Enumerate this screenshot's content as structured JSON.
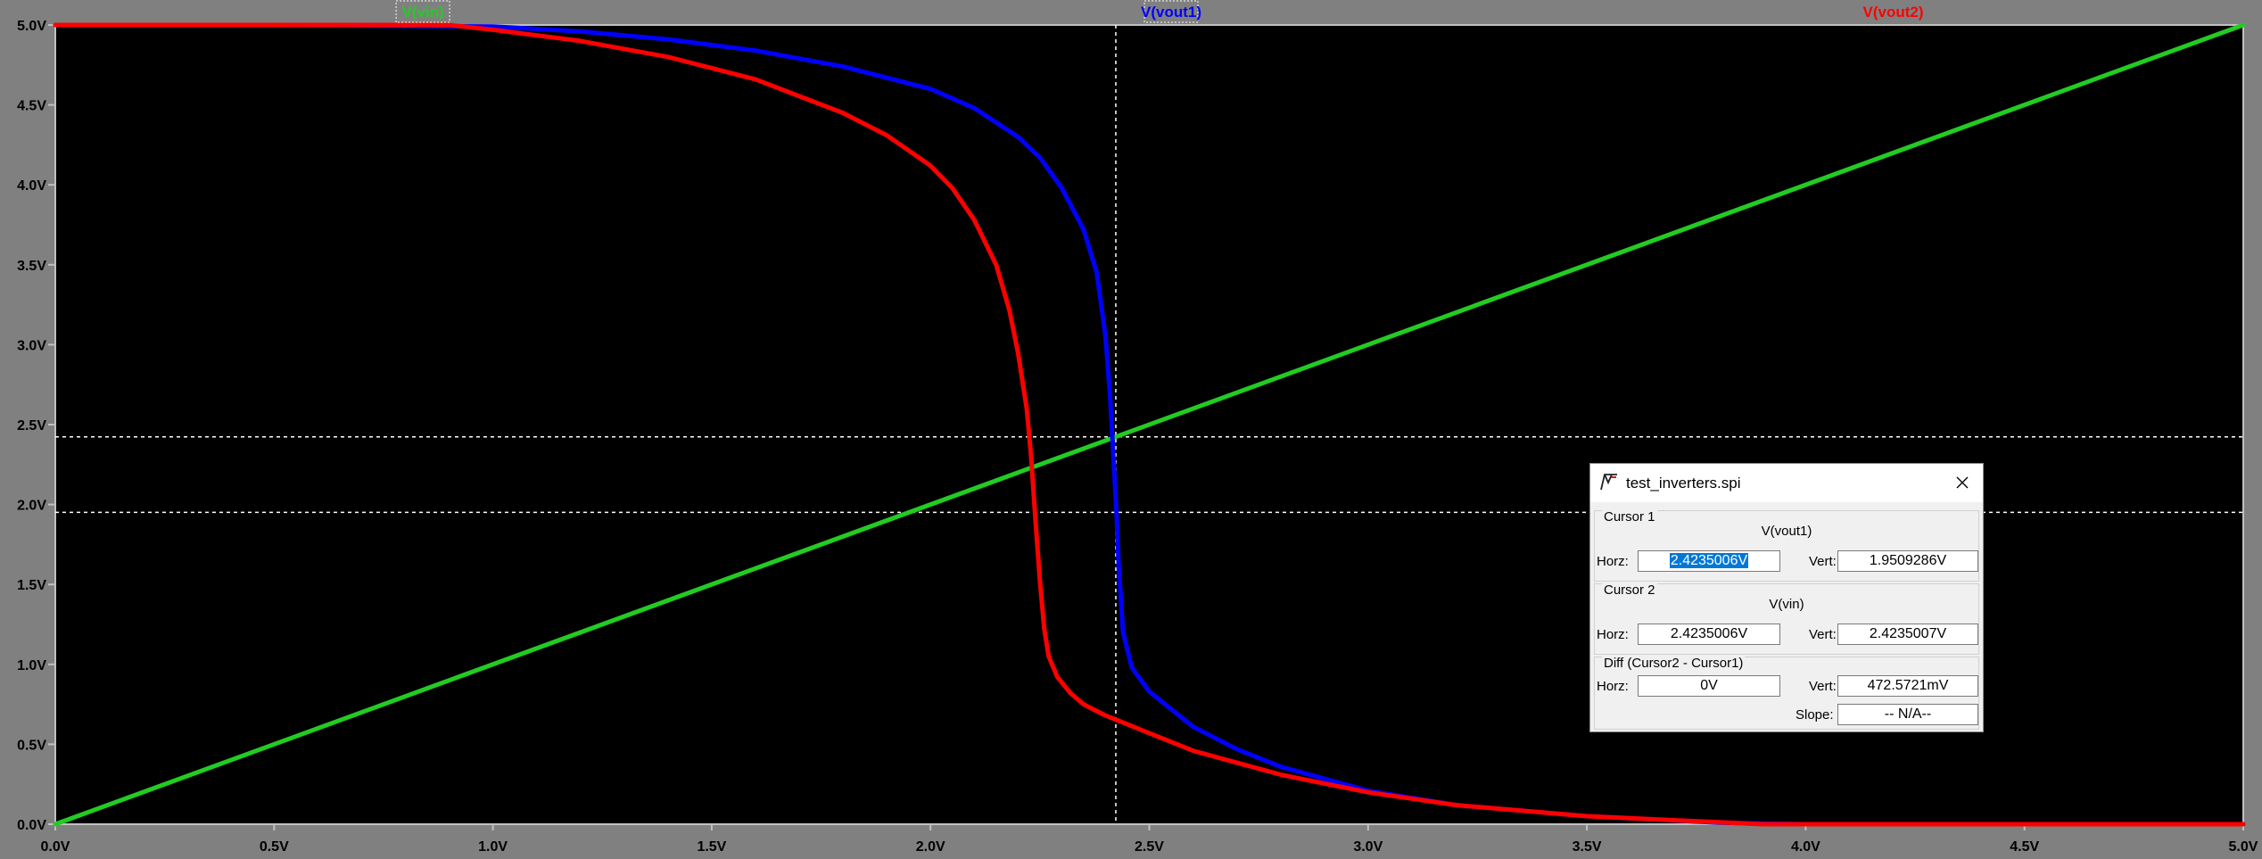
{
  "chart_data": {
    "type": "line",
    "xlabel": "",
    "ylabel": "",
    "xlim": [
      0,
      5
    ],
    "ylim": [
      0,
      5
    ],
    "x_ticks": [
      "0.0V",
      "0.5V",
      "1.0V",
      "1.5V",
      "2.0V",
      "2.5V",
      "3.0V",
      "3.5V",
      "4.0V",
      "4.5V",
      "5.0V"
    ],
    "y_ticks": [
      "0.0V",
      "0.5V",
      "1.0V",
      "1.5V",
      "2.0V",
      "2.5V",
      "3.0V",
      "3.5V",
      "4.0V",
      "4.5V",
      "5.0V"
    ],
    "grid": false,
    "background": "#000000",
    "legend": "top, as trace labels",
    "series": [
      {
        "name": "V(vin)",
        "color": "#22cc22",
        "x": [
          0,
          5
        ],
        "y": [
          0,
          5
        ]
      },
      {
        "name": "V(vout1)",
        "color": "#0000ff",
        "x": [
          0,
          0.5,
          1.0,
          1.2,
          1.4,
          1.6,
          1.8,
          2.0,
          2.1,
          2.2,
          2.25,
          2.3,
          2.35,
          2.38,
          2.4,
          2.41,
          2.42,
          2.425,
          2.43,
          2.44,
          2.46,
          2.5,
          2.55,
          2.6,
          2.7,
          2.8,
          3.0,
          3.2,
          3.5,
          3.8,
          4.0,
          5.0
        ],
        "y": [
          5.0,
          5.0,
          4.99,
          4.96,
          4.91,
          4.84,
          4.74,
          4.6,
          4.48,
          4.3,
          4.17,
          3.98,
          3.72,
          3.45,
          3.05,
          2.7,
          2.2,
          1.95,
          1.62,
          1.2,
          0.98,
          0.83,
          0.72,
          0.61,
          0.47,
          0.36,
          0.21,
          0.12,
          0.05,
          0.01,
          0.0,
          0.0
        ]
      },
      {
        "name": "V(vout2)",
        "color": "#ff0000",
        "x": [
          0,
          0.9,
          1.0,
          1.2,
          1.4,
          1.6,
          1.8,
          1.9,
          2.0,
          2.05,
          2.1,
          2.15,
          2.18,
          2.2,
          2.22,
          2.23,
          2.24,
          2.25,
          2.26,
          2.27,
          2.29,
          2.32,
          2.35,
          2.4,
          2.5,
          2.6,
          2.8,
          3.0,
          3.2,
          3.5,
          3.9,
          4.0,
          5.0
        ],
        "y": [
          5.0,
          5.0,
          4.97,
          4.9,
          4.8,
          4.66,
          4.45,
          4.31,
          4.12,
          3.98,
          3.78,
          3.5,
          3.22,
          2.95,
          2.6,
          2.3,
          1.9,
          1.52,
          1.22,
          1.05,
          0.92,
          0.82,
          0.75,
          0.68,
          0.57,
          0.46,
          0.31,
          0.2,
          0.12,
          0.05,
          0.0,
          0.0,
          0.0
        ]
      }
    ],
    "cursors": {
      "vertical_x": 2.4235,
      "horizontal_y": [
        2.4235007,
        1.9509286
      ]
    }
  },
  "dialog": {
    "title": "test_inverters.spi",
    "cursor1": {
      "heading": "Cursor 1",
      "trace": "V(vout1)",
      "horz_label": "Horz:",
      "horz": "2.4235006V",
      "vert_label": "Vert:",
      "vert": "1.9509286V"
    },
    "cursor2": {
      "heading": "Cursor 2",
      "trace": "V(vin)",
      "horz_label": "Horz:",
      "horz": "2.4235006V",
      "vert_label": "Vert:",
      "vert": "2.4235007V"
    },
    "diff": {
      "heading": "Diff (Cursor2 - Cursor1)",
      "horz_label": "Horz:",
      "horz": "0V",
      "vert_label": "Vert:",
      "vert": "472.5721mV",
      "slope_label": "Slope:",
      "slope": "-- N/A--"
    }
  }
}
